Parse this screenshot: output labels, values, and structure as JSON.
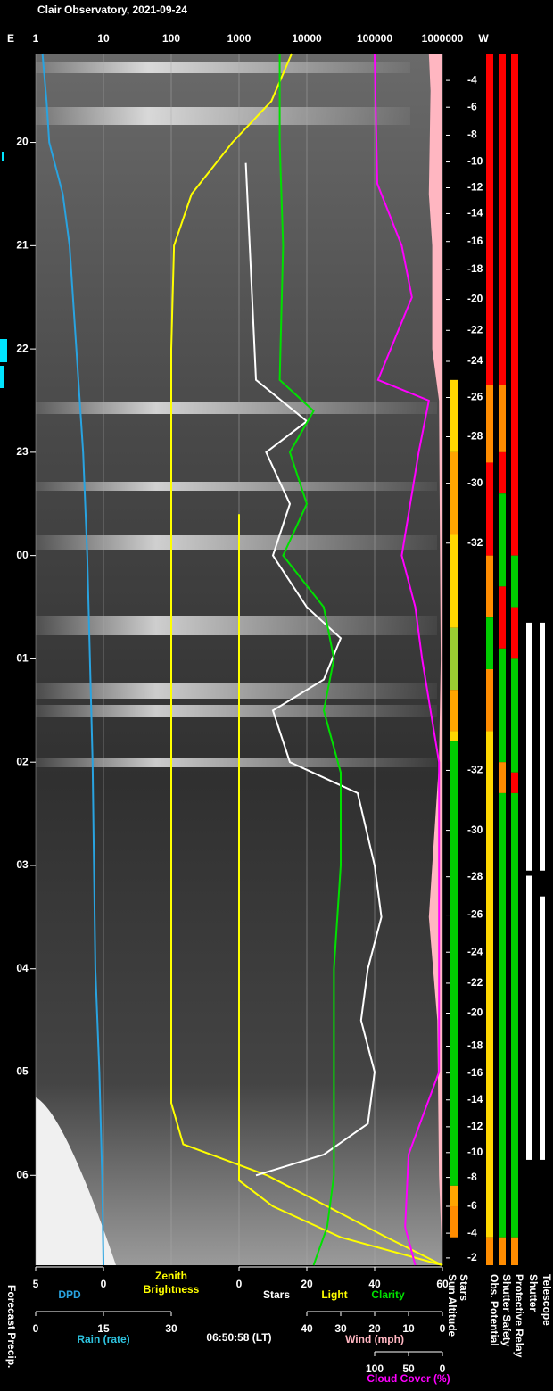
{
  "chart_data": {
    "type": "line",
    "title": "Clair Observatory, 2021-09-24",
    "east_label": "E",
    "west_label": "W",
    "log_x": true,
    "grid": true,
    "xlim": [
      1,
      1000000
    ],
    "xticks": [
      1,
      10,
      100,
      1000,
      10000,
      100000,
      1000000
    ],
    "ylim": [
      19.14,
      30.87
    ],
    "yticks": [
      20,
      21,
      22,
      23,
      {
        "value": 24,
        "label": "00"
      },
      {
        "value": 25,
        "label": "01"
      },
      {
        "value": 26,
        "label": "02"
      },
      {
        "value": 27,
        "label": "03"
      },
      {
        "value": 28,
        "label": "04"
      },
      {
        "value": 29,
        "label": "05"
      },
      {
        "value": 30,
        "label": "06"
      }
    ],
    "time_label": "06:50:58 (LT)",
    "forecast_label": "Forecast Precip.",
    "bottom_axes": [
      {
        "xlim": [
          5,
          0
        ],
        "xticks": [
          5,
          0
        ],
        "series": [
          {
            "name": "DPD",
            "color": "#29a3e0",
            "x": [
              19.14,
              19.6,
              20.0,
              20.5,
              21.0,
              22.0,
              23.0,
              24.0,
              26.0,
              28.0,
              29.0,
              30.0,
              30.87
            ],
            "values": [
              4.5,
              4.2,
              4.0,
              3.0,
              2.5,
              2.0,
              1.5,
              1.2,
              0.8,
              0.6,
              0.3,
              0.1,
              0
            ]
          }
        ]
      },
      {
        "series": [
          {
            "name": "Zenith Brightness",
            "color": "#ffff00",
            "x": [
              19.14,
              19.6,
              20.0,
              20.5,
              21.0,
              22.0,
              24.0,
              26.0,
              28.0,
              29.3,
              29.7,
              30.0,
              30.3,
              30.6,
              30.87
            ],
            "values": [
              6000,
              3000,
              800,
              200,
              110,
              100,
              100,
              100,
              100,
              100,
              150,
              2600,
              20000,
              150000,
              1000000
            ]
          }
        ]
      },
      {
        "xlim": [
          0,
          60
        ],
        "xticks": [
          0,
          20,
          40,
          60
        ],
        "series": [
          {
            "name": "Stars",
            "color": "#ffffff",
            "x": [
              20.2,
              22.3,
              22.7,
              23.0,
              23.5,
              24.0,
              24.5,
              24.8,
              25.2,
              25.5,
              26.0,
              26.3,
              27.0,
              27.5,
              28.0,
              28.5,
              29.0,
              29.5,
              29.8,
              30.0
            ],
            "values": [
              2,
              5,
              20,
              8,
              15,
              10,
              20,
              30,
              25,
              10,
              15,
              35,
              40,
              42,
              38,
              36,
              40,
              38,
              25,
              5
            ]
          },
          {
            "name": "Light",
            "color": "#ffff00",
            "x": [
              23.6,
              30.05,
              30.3,
              30.6,
              30.87
            ],
            "values": [
              0,
              0,
              10,
              30,
              60
            ]
          },
          {
            "name": "Clarity",
            "color": "#00e000",
            "x": [
              19.14,
              20.0,
              21.0,
              22.3,
              22.6,
              23.0,
              23.5,
              24.0,
              24.5,
              25.0,
              25.5,
              26.1,
              27.0,
              28.0,
              29.0,
              30.0,
              30.5,
              30.87
            ],
            "values": [
              12,
              12,
              13,
              12,
              22,
              15,
              20,
              13,
              25,
              28,
              25,
              30,
              30,
              28,
              28,
              28,
              26,
              22
            ]
          }
        ]
      },
      {
        "xlim": [
          0,
          30
        ],
        "xticks": [
          0,
          15,
          30
        ],
        "name": "Rain (rate)",
        "color": "#2ec4e0"
      },
      {
        "xlim": [
          40,
          0
        ],
        "xticks": [
          40,
          30,
          20,
          10,
          0
        ],
        "series": [
          {
            "name": "Wind (mph)",
            "color": "#ffb6c1",
            "area": true,
            "x": [
              19.14,
              19.5,
              20.5,
              21.0,
              22.0,
              22.5,
              25.0,
              26.0,
              27.5,
              28.5,
              30.0,
              30.87
            ],
            "values": [
              4,
              3.5,
              4,
              3,
              3,
              1,
              0.5,
              1,
              4,
              1.5,
              1,
              0
            ]
          }
        ]
      },
      {
        "xlim": [
          100,
          0
        ],
        "xticks": [
          100,
          50,
          0
        ],
        "series": [
          {
            "name": "Cloud Cover (%)",
            "color": "#ff00ff",
            "x": [
              19.14,
              20.4,
              21.0,
              21.5,
              22.3,
              22.5,
              23.0,
              24.0,
              24.5,
              25.0,
              26.0,
              27.0,
              29.0,
              29.8,
              30.5,
              30.87
            ],
            "values": [
              100,
              96,
              60,
              45,
              95,
              20,
              35,
              60,
              40,
              30,
              5,
              5,
              5,
              50,
              55,
              40
            ]
          }
        ]
      }
    ],
    "sun_altitude": {
      "name": "Sun Altitude",
      "x": [
        19.4,
        19.66,
        19.93,
        20.19,
        20.44,
        20.69,
        20.96,
        21.23,
        21.52,
        21.82,
        22.12,
        22.47,
        22.85,
        23.3,
        23.88,
        26.08,
        26.66,
        27.11,
        27.48,
        27.84,
        28.14,
        28.43,
        28.75,
        29.01,
        29.27,
        29.53,
        29.78,
        30.02,
        30.3,
        30.56,
        30.8
      ],
      "values": [
        -4,
        -6,
        -8,
        -10,
        -12,
        -14,
        -16,
        -18,
        -20,
        -22,
        -24,
        -26,
        -28,
        -30,
        -32,
        -32,
        -30,
        -28,
        -26,
        -24,
        -22,
        -20,
        -18,
        -16,
        -14,
        -12,
        -10,
        -8,
        -6,
        -4,
        -2
      ]
    },
    "status_columns": [
      {
        "name": "Stars",
        "segments": [
          [
            22.3,
            23.0,
            "#ffd700"
          ],
          [
            23.0,
            23.8,
            "#ffa500"
          ],
          [
            23.8,
            24.7,
            "#ffd700"
          ],
          [
            24.7,
            25.3,
            "#9acd32"
          ],
          [
            25.3,
            25.7,
            "#ffa500"
          ],
          [
            25.7,
            25.8,
            "#ffd700"
          ],
          [
            25.8,
            30.1,
            "#00cc00"
          ],
          [
            30.1,
            30.3,
            "#ffa500"
          ],
          [
            30.3,
            30.6,
            "#ff8c00"
          ]
        ]
      },
      {
        "name": "Obs. Potential",
        "segments": [
          [
            19.14,
            22.35,
            "#ff0000"
          ],
          [
            22.35,
            23.1,
            "#ff8c00"
          ],
          [
            23.1,
            24.0,
            "#ff0000"
          ],
          [
            24.0,
            24.6,
            "#ff8c00"
          ],
          [
            24.6,
            25.1,
            "#00cc00"
          ],
          [
            25.1,
            25.7,
            "#ff8c00"
          ],
          [
            25.7,
            30.6,
            "#ffd700"
          ],
          [
            30.6,
            30.87,
            "#ff8c00"
          ]
        ]
      },
      {
        "name": "Shutter Safety",
        "segments": [
          [
            19.14,
            22.35,
            "#ff0000"
          ],
          [
            22.35,
            23.0,
            "#ff8c00"
          ],
          [
            23.0,
            23.4,
            "#ff0000"
          ],
          [
            23.4,
            24.3,
            "#00cc00"
          ],
          [
            24.3,
            24.9,
            "#ff0000"
          ],
          [
            24.9,
            26.0,
            "#00cc00"
          ],
          [
            26.0,
            26.3,
            "#ff8c00"
          ],
          [
            26.3,
            30.6,
            "#00cc00"
          ],
          [
            30.6,
            30.87,
            "#ff8c00"
          ]
        ]
      },
      {
        "name": "Protective Relay",
        "segments": [
          [
            19.14,
            24.0,
            "#ff0000"
          ],
          [
            24.0,
            24.5,
            "#00cc00"
          ],
          [
            24.5,
            25.0,
            "#ff0000"
          ],
          [
            25.0,
            26.1,
            "#00cc00"
          ],
          [
            26.1,
            26.3,
            "#ff0000"
          ],
          [
            26.3,
            30.6,
            "#00cc00"
          ],
          [
            30.6,
            30.87,
            "#ff8c00"
          ]
        ]
      },
      {
        "name": "Shutter",
        "segments": [
          [
            24.65,
            27.05,
            "#ffffff"
          ],
          [
            27.1,
            29.85,
            "#ffffff"
          ]
        ]
      },
      {
        "name": "Telescope",
        "segments": [
          [
            24.65,
            27.05,
            "#ffffff"
          ],
          [
            27.3,
            29.85,
            "#ffffff"
          ]
        ]
      }
    ]
  }
}
